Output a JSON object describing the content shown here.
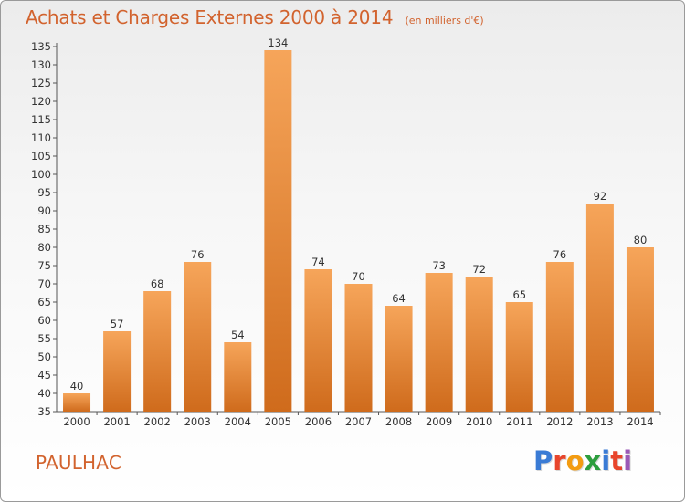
{
  "header": {
    "title": "Achats et Charges Externes 2000 à 2014",
    "subtitle": "(en milliers d'€)"
  },
  "footer": {
    "commune": "PAULHAC",
    "logo": "Proxiti",
    "logo_colors": [
      "#3a7bd5",
      "#e8452c",
      "#f39c12",
      "#2c9e3d",
      "#3a7bd5",
      "#e8452c",
      "#9b59b6"
    ]
  },
  "colors": {
    "bar_top": "#f6a55a",
    "bar_bottom": "#cf6b1c",
    "title": "#d2632e"
  },
  "chart_data": {
    "type": "bar",
    "categories": [
      "2000",
      "2001",
      "2002",
      "2003",
      "2004",
      "2005",
      "2006",
      "2007",
      "2008",
      "2009",
      "2010",
      "2011",
      "2012",
      "2013",
      "2014"
    ],
    "values": [
      40,
      57,
      68,
      76,
      54,
      134,
      74,
      70,
      64,
      73,
      72,
      65,
      76,
      92,
      80
    ],
    "ylim": [
      35,
      135
    ],
    "yticks": [
      35,
      40,
      45,
      50,
      55,
      60,
      65,
      70,
      75,
      80,
      85,
      90,
      95,
      100,
      105,
      110,
      115,
      120,
      125,
      130,
      135
    ],
    "grid": false,
    "xlabel": "",
    "ylabel": ""
  }
}
